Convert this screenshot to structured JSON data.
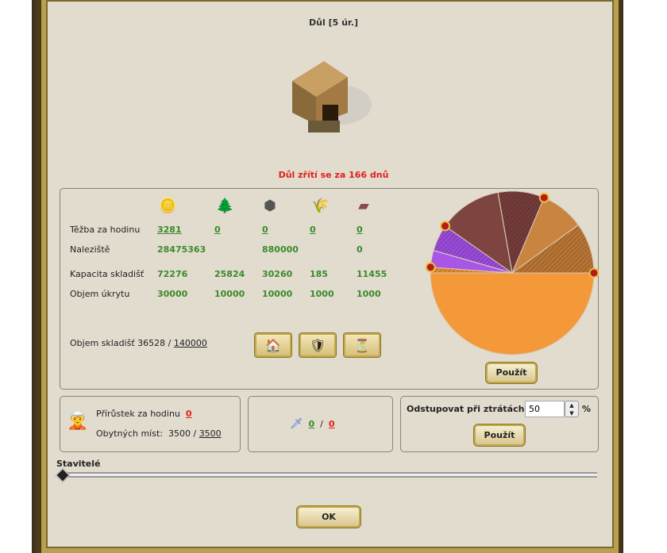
{
  "title": "Důl [5 úr.]",
  "collapse_warning": "Důl zřítí se za 166 dnů",
  "resources": [
    "gold-icon",
    "wood-icon",
    "stone-icon",
    "grain-icon",
    "iron-icon"
  ],
  "rows": [
    {
      "label": "Těžba za hodinu",
      "values": [
        "3281",
        "0",
        "0",
        "0",
        "0"
      ],
      "linked": true
    },
    {
      "label": "Naleziště",
      "values": [
        "28475363",
        "",
        "880000",
        "",
        "0"
      ]
    },
    {
      "label": "Kapacita skladišť",
      "values": [
        "72276",
        "25824",
        "30260",
        "185",
        "11455"
      ]
    },
    {
      "label": "Objem úkrytu",
      "values": [
        "30000",
        "10000",
        "10000",
        "1000",
        "1000"
      ]
    }
  ],
  "storage": {
    "label": "Objem skladišť 36528 /",
    "max": "140000"
  },
  "pie": {
    "slices": [
      {
        "from": 0,
        "to": -180,
        "color": "#f4993a",
        "striped": false
      },
      {
        "from": 180,
        "to": 176,
        "color": "#e08a30",
        "striped": true
      },
      {
        "from": 176,
        "to": 164,
        "color": "#a855e8",
        "striped": false
      },
      {
        "from": 164,
        "to": 145,
        "color": "#9a4ad8",
        "striped": true
      },
      {
        "from": 145,
        "to": 100,
        "color": "#7e4440",
        "striped": false
      },
      {
        "from": 100,
        "to": 67,
        "color": "#743c3a",
        "striped": true
      },
      {
        "from": 67,
        "to": 36,
        "color": "#c98440",
        "striped": false
      },
      {
        "from": 36,
        "to": 0,
        "color": "#b87434",
        "striped": true
      }
    ],
    "handles": [
      0,
      67,
      145,
      176
    ]
  },
  "apply_label": "Použít",
  "population": {
    "growth_label": "Přírůstek za hodinu",
    "growth": "0",
    "housing_label": "Obytných míst:",
    "housing": "3500 /",
    "housing_max": "3500"
  },
  "army": {
    "own": "0",
    "sep": "/",
    "enemy": "0"
  },
  "retreat": {
    "label": "Odstupovat při ztrátách",
    "value": "50",
    "unit": "%"
  },
  "builders_label": "Stavitelé",
  "builders_slider": 0,
  "ok_label": "OK"
}
